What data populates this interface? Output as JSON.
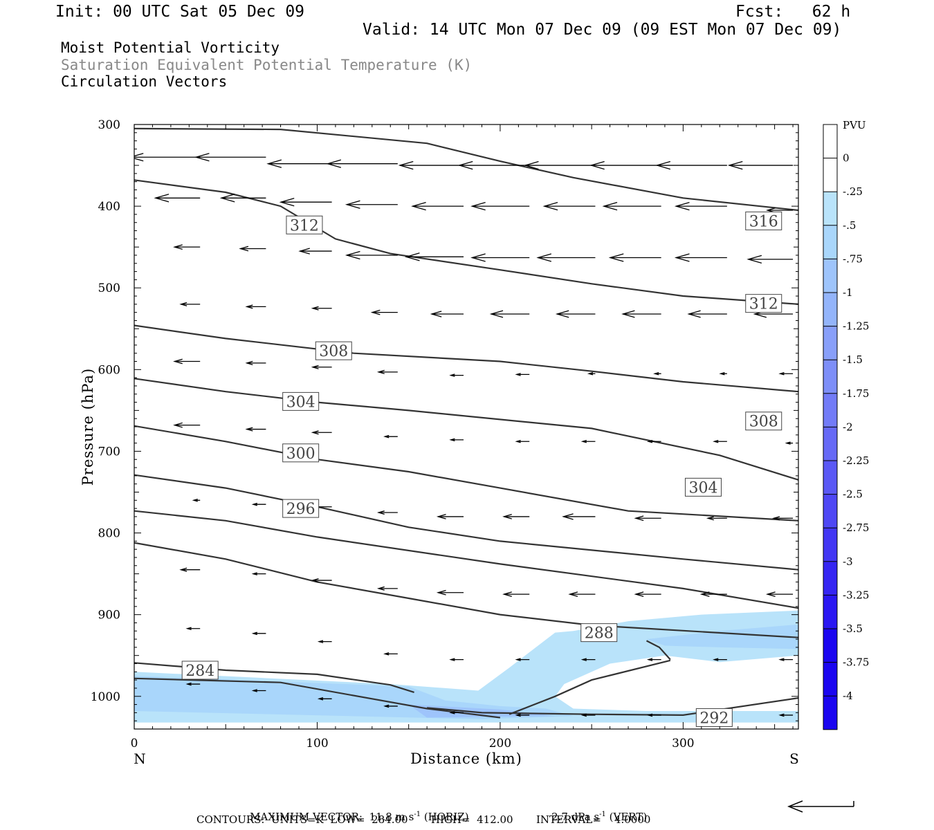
{
  "header": {
    "init": "Init: 00 UTC Sat 05 Dec 09",
    "fcst": "Fcst:   62 h",
    "valid": "Valid: 14 UTC Mon 07 Dec 09 (09 EST Mon 07 Dec 09)"
  },
  "titles": {
    "line1": "Moist Potential Vorticity",
    "line2": "Saturation Equivalent Potential Temperature (K)",
    "line3": "Circulation Vectors"
  },
  "colors": {
    "contour": "#333333",
    "label_text": "#444444",
    "subtitle_gray": "#888888",
    "pv_shades": [
      "#ffffff",
      "#ffffff",
      "#b9e3fa",
      "#a9d6fb",
      "#9ec4fb",
      "#93b4fa",
      "#889ff9",
      "#7d8ef8",
      "#727bf7",
      "#6669f6",
      "#5a58f5",
      "#4e47f4",
      "#4236f3",
      "#3525f2",
      "#2a17f2",
      "#1a05f0"
    ]
  },
  "chart_data": {
    "type": "contour",
    "xlabel": "Distance (km)",
    "ylabel": "Pressure (hPa)",
    "xlim": [
      0,
      363
    ],
    "ylim": [
      1040,
      300
    ],
    "x_ticks": [
      "0",
      "100",
      "200",
      "300"
    ],
    "y_ticks": [
      "300",
      "400",
      "500",
      "600",
      "700",
      "800",
      "900",
      "1000"
    ],
    "x_end_labels": {
      "left": "N",
      "right": "S"
    },
    "contour_labels": [
      {
        "value": "316",
        "x": 344,
        "p": 418
      },
      {
        "value": "312",
        "x": 93,
        "p": 423
      },
      {
        "value": "312",
        "x": 344,
        "p": 519
      },
      {
        "value": "308",
        "x": 109,
        "p": 577
      },
      {
        "value": "308",
        "x": 344,
        "p": 663
      },
      {
        "value": "304",
        "x": 91,
        "p": 639
      },
      {
        "value": "304",
        "x": 311,
        "p": 744
      },
      {
        "value": "300",
        "x": 91,
        "p": 702
      },
      {
        "value": "296",
        "x": 91,
        "p": 770
      },
      {
        "value": "288",
        "x": 254,
        "p": 922
      },
      {
        "value": "284",
        "x": 36,
        "p": 968
      },
      {
        "value": "292",
        "x": 317,
        "p": 1026
      }
    ],
    "colorbar": {
      "unit": "PVU",
      "levels": [
        "0",
        "-.25",
        "-.5",
        "-.75",
        "-1",
        "-1.25",
        "-1.5",
        "-1.75",
        "-2",
        "-2.25",
        "-2.5",
        "-2.75",
        "-3",
        "-3.25",
        "-3.5",
        "-3.75",
        "-4"
      ]
    },
    "contours": [
      [
        [
          0,
          305
        ],
        [
          80,
          306
        ],
        [
          160,
          323
        ],
        [
          200,
          345
        ],
        [
          240,
          365
        ],
        [
          300,
          390
        ],
        [
          363,
          405
        ]
      ],
      [
        [
          0,
          368
        ],
        [
          50,
          383
        ],
        [
          80,
          400
        ],
        [
          110,
          440
        ],
        [
          140,
          458
        ],
        [
          200,
          478
        ],
        [
          250,
          495
        ],
        [
          300,
          510
        ],
        [
          363,
          520
        ]
      ],
      [
        [
          0,
          546
        ],
        [
          50,
          562
        ],
        [
          120,
          580
        ],
        [
          200,
          590
        ],
        [
          250,
          602
        ],
        [
          300,
          615
        ],
        [
          363,
          627
        ]
      ],
      [
        [
          0,
          611
        ],
        [
          50,
          627
        ],
        [
          100,
          640
        ],
        [
          150,
          650
        ],
        [
          250,
          672
        ],
        [
          320,
          705
        ],
        [
          363,
          735
        ]
      ],
      [
        [
          0,
          669
        ],
        [
          50,
          688
        ],
        [
          100,
          710
        ],
        [
          150,
          725
        ],
        [
          200,
          745
        ],
        [
          270,
          773
        ],
        [
          363,
          785
        ]
      ],
      [
        [
          0,
          729
        ],
        [
          50,
          745
        ],
        [
          100,
          768
        ],
        [
          150,
          793
        ],
        [
          200,
          810
        ],
        [
          300,
          832
        ],
        [
          363,
          845
        ]
      ],
      [
        [
          0,
          773
        ],
        [
          50,
          785
        ],
        [
          100,
          805
        ],
        [
          200,
          838
        ],
        [
          300,
          868
        ],
        [
          363,
          892
        ]
      ],
      [
        [
          0,
          812
        ],
        [
          50,
          832
        ],
        [
          100,
          860
        ],
        [
          150,
          880
        ],
        [
          200,
          900
        ],
        [
          250,
          913
        ],
        [
          363,
          928
        ]
      ],
      [
        [
          0,
          959
        ],
        [
          50,
          968
        ],
        [
          100,
          973
        ],
        [
          140,
          986
        ],
        [
          153,
          995
        ]
      ],
      [
        [
          0,
          978
        ],
        [
          80,
          983
        ],
        [
          160,
          1015
        ],
        [
          200,
          1026
        ]
      ],
      [
        [
          205,
          1022
        ],
        [
          230,
          1000
        ],
        [
          250,
          980
        ],
        [
          293,
          956
        ]
      ],
      [
        [
          280,
          932
        ],
        [
          287,
          940
        ],
        [
          293,
          955
        ]
      ],
      [
        [
          160,
          1014
        ],
        [
          190,
          1020
        ],
        [
          250,
          1022
        ],
        [
          300,
          1023
        ],
        [
          363,
          1002
        ]
      ]
    ],
    "shading": [
      {
        "level": "-.25",
        "polygon": [
          [
            0,
            970
          ],
          [
            140,
            985
          ],
          [
            170,
            990
          ],
          [
            188,
            993
          ],
          [
            205,
            965
          ],
          [
            230,
            922
          ],
          [
            240,
            920
          ],
          [
            270,
            908
          ],
          [
            310,
            900
          ],
          [
            363,
            895
          ],
          [
            363,
            950
          ],
          [
            320,
            958
          ],
          [
            290,
            950
          ],
          [
            260,
            960
          ],
          [
            235,
            985
          ],
          [
            230,
            1000
          ],
          [
            240,
            1015
          ],
          [
            280,
            1018
          ],
          [
            363,
            1018
          ],
          [
            363,
            1032
          ],
          [
            0,
            1032
          ]
        ]
      },
      {
        "level": "-.5",
        "polygon": [
          [
            0,
            975
          ],
          [
            150,
            988
          ],
          [
            170,
            1005
          ],
          [
            200,
            1012
          ],
          [
            225,
            1015
          ],
          [
            240,
            1024
          ],
          [
            190,
            1028
          ],
          [
            0,
            1018
          ]
        ]
      },
      {
        "level": "-.5",
        "polygon": [
          [
            280,
            930
          ],
          [
            320,
            920
          ],
          [
            363,
            912
          ],
          [
            363,
            942
          ],
          [
            320,
            940
          ],
          [
            290,
            938
          ]
        ]
      },
      {
        "level": "-.75",
        "polygon": [
          [
            150,
            1010
          ],
          [
            200,
            1016
          ],
          [
            230,
            1024
          ],
          [
            160,
            1026
          ]
        ]
      }
    ],
    "vectors": [
      {
        "x": 0,
        "p": 330,
        "u": -12,
        "w": 0
      },
      {
        "x": 36,
        "p": 340,
        "u": -11,
        "w": 0
      },
      {
        "x": 72,
        "p": 340,
        "u": -11,
        "w": 0
      },
      {
        "x": 108,
        "p": 348,
        "u": -10,
        "w": 0
      },
      {
        "x": 144,
        "p": 348,
        "u": -11,
        "w": 0
      },
      {
        "x": 180,
        "p": 350,
        "u": -10,
        "w": 0
      },
      {
        "x": 216,
        "p": 350,
        "u": -11,
        "w": 0
      },
      {
        "x": 252,
        "p": 350,
        "u": -11,
        "w": 0
      },
      {
        "x": 288,
        "p": 350,
        "u": -11,
        "w": 0
      },
      {
        "x": 324,
        "p": 350,
        "u": -11,
        "w": 0
      },
      {
        "x": 360,
        "p": 350,
        "u": -10,
        "w": 0
      },
      {
        "x": 36,
        "p": 390,
        "u": -7,
        "w": 0
      },
      {
        "x": 72,
        "p": 390,
        "u": -7,
        "w": 0
      },
      {
        "x": 108,
        "p": 395,
        "u": -8,
        "w": 0
      },
      {
        "x": 144,
        "p": 398,
        "u": -8,
        "w": 0
      },
      {
        "x": 180,
        "p": 400,
        "u": -8,
        "w": 0
      },
      {
        "x": 216,
        "p": 400,
        "u": -9,
        "w": 0
      },
      {
        "x": 252,
        "p": 400,
        "u": -8,
        "w": 0
      },
      {
        "x": 288,
        "p": 400,
        "u": -9,
        "w": 0
      },
      {
        "x": 324,
        "p": 400,
        "u": -8,
        "w": 0
      },
      {
        "x": 360,
        "p": 405,
        "u": -4,
        "w": 0
      },
      {
        "x": 36,
        "p": 450,
        "u": -4,
        "w": 0
      },
      {
        "x": 72,
        "p": 452,
        "u": -4,
        "w": 0
      },
      {
        "x": 108,
        "p": 455,
        "u": -5,
        "w": 0
      },
      {
        "x": 144,
        "p": 460,
        "u": -8,
        "w": 0
      },
      {
        "x": 180,
        "p": 462,
        "u": -9,
        "w": 0
      },
      {
        "x": 216,
        "p": 463,
        "u": -9,
        "w": 0
      },
      {
        "x": 252,
        "p": 463,
        "u": -9,
        "w": 0
      },
      {
        "x": 288,
        "p": 463,
        "u": -8,
        "w": 0
      },
      {
        "x": 324,
        "p": 463,
        "u": -8,
        "w": 0
      },
      {
        "x": 360,
        "p": 465,
        "u": -7,
        "w": 0
      },
      {
        "x": 36,
        "p": 520,
        "u": -3,
        "w": 0
      },
      {
        "x": 72,
        "p": 523,
        "u": -3,
        "w": 0
      },
      {
        "x": 108,
        "p": 525,
        "u": -3,
        "w": 0
      },
      {
        "x": 144,
        "p": 530,
        "u": -4,
        "w": 0
      },
      {
        "x": 180,
        "p": 532,
        "u": -5,
        "w": 0
      },
      {
        "x": 216,
        "p": 532,
        "u": -6,
        "w": 0
      },
      {
        "x": 252,
        "p": 532,
        "u": -6,
        "w": 0
      },
      {
        "x": 288,
        "p": 532,
        "u": -6,
        "w": 0
      },
      {
        "x": 324,
        "p": 532,
        "u": -6,
        "w": 0
      },
      {
        "x": 360,
        "p": 532,
        "u": -6,
        "w": 0
      },
      {
        "x": 36,
        "p": 590,
        "u": -4,
        "w": 0
      },
      {
        "x": 72,
        "p": 592,
        "u": -3,
        "w": 0
      },
      {
        "x": 108,
        "p": 597,
        "u": -3,
        "w": 0
      },
      {
        "x": 144,
        "p": 603,
        "u": -3,
        "w": 0
      },
      {
        "x": 180,
        "p": 607,
        "u": -2,
        "w": 0
      },
      {
        "x": 216,
        "p": 606,
        "u": -2,
        "w": 0
      },
      {
        "x": 252,
        "p": 605,
        "u": -1,
        "w": 0
      },
      {
        "x": 288,
        "p": 605,
        "u": -1,
        "w": 0
      },
      {
        "x": 324,
        "p": 605,
        "u": -1,
        "w": 0
      },
      {
        "x": 360,
        "p": 605,
        "u": -2,
        "w": 0
      },
      {
        "x": 36,
        "p": 668,
        "u": -4,
        "w": 0
      },
      {
        "x": 72,
        "p": 673,
        "u": -3,
        "w": 0
      },
      {
        "x": 108,
        "p": 677,
        "u": -3,
        "w": 0
      },
      {
        "x": 144,
        "p": 682,
        "u": -2,
        "w": 0
      },
      {
        "x": 180,
        "p": 686,
        "u": -2,
        "w": 0
      },
      {
        "x": 216,
        "p": 688,
        "u": -2,
        "w": 0
      },
      {
        "x": 252,
        "p": 688,
        "u": -2,
        "w": 0
      },
      {
        "x": 288,
        "p": 688,
        "u": -2,
        "w": 0
      },
      {
        "x": 324,
        "p": 688,
        "u": -2,
        "w": 0
      },
      {
        "x": 360,
        "p": 690,
        "u": -1,
        "w": 0
      },
      {
        "x": 36,
        "p": 760,
        "u": -1,
        "w": 0
      },
      {
        "x": 72,
        "p": 765,
        "u": -2,
        "w": 0
      },
      {
        "x": 108,
        "p": 768,
        "u": -3,
        "w": 0
      },
      {
        "x": 144,
        "p": 775,
        "u": -3,
        "w": 0
      },
      {
        "x": 180,
        "p": 780,
        "u": -4,
        "w": 0
      },
      {
        "x": 216,
        "p": 780,
        "u": -4,
        "w": 0
      },
      {
        "x": 252,
        "p": 780,
        "u": -5,
        "w": 0
      },
      {
        "x": 288,
        "p": 782,
        "u": -4,
        "w": 0
      },
      {
        "x": 324,
        "p": 782,
        "u": -3,
        "w": 0
      },
      {
        "x": 360,
        "p": 782,
        "u": -3,
        "w": 0
      },
      {
        "x": 36,
        "p": 845,
        "u": -3,
        "w": 0
      },
      {
        "x": 72,
        "p": 850,
        "u": -2,
        "w": 0
      },
      {
        "x": 108,
        "p": 858,
        "u": -3,
        "w": 0
      },
      {
        "x": 144,
        "p": 868,
        "u": -3,
        "w": 0
      },
      {
        "x": 180,
        "p": 873,
        "u": -4,
        "w": 0
      },
      {
        "x": 216,
        "p": 875,
        "u": -4,
        "w": 0
      },
      {
        "x": 252,
        "p": 875,
        "u": -4,
        "w": 0
      },
      {
        "x": 288,
        "p": 875,
        "u": -4,
        "w": 0
      },
      {
        "x": 324,
        "p": 875,
        "u": -4,
        "w": 0
      },
      {
        "x": 360,
        "p": 875,
        "u": -4,
        "w": 0
      },
      {
        "x": 36,
        "p": 917,
        "u": -2,
        "w": 0
      },
      {
        "x": 72,
        "p": 923,
        "u": -2,
        "w": 0
      },
      {
        "x": 108,
        "p": 933,
        "u": -2,
        "w": 0
      },
      {
        "x": 144,
        "p": 948,
        "u": -2,
        "w": 0
      },
      {
        "x": 180,
        "p": 955,
        "u": -2,
        "w": 0
      },
      {
        "x": 216,
        "p": 955,
        "u": -2,
        "w": 0
      },
      {
        "x": 252,
        "p": 955,
        "u": -2,
        "w": 0
      },
      {
        "x": 288,
        "p": 955,
        "u": -2,
        "w": 0
      },
      {
        "x": 324,
        "p": 955,
        "u": -2,
        "w": 0
      },
      {
        "x": 360,
        "p": 955,
        "u": -2,
        "w": 0
      },
      {
        "x": 36,
        "p": 985,
        "u": -2,
        "w": 0
      },
      {
        "x": 72,
        "p": 993,
        "u": -2,
        "w": 0
      },
      {
        "x": 108,
        "p": 1003,
        "u": -2,
        "w": 0
      },
      {
        "x": 144,
        "p": 1012,
        "u": -2,
        "w": 0
      },
      {
        "x": 180,
        "p": 1020,
        "u": -2,
        "w": 0
      },
      {
        "x": 216,
        "p": 1023,
        "u": -2,
        "w": 0
      },
      {
        "x": 252,
        "p": 1023,
        "u": -2,
        "w": 0
      },
      {
        "x": 288,
        "p": 1023,
        "u": -2,
        "w": 0
      },
      {
        "x": 324,
        "p": 1023,
        "u": -2,
        "w": 0
      },
      {
        "x": 360,
        "p": 1023,
        "u": -2,
        "w": 0
      }
    ]
  },
  "footer": {
    "max_vector": "MAXIMUM VECTOR:  11.8 m s",
    "horiz": " (HORIZ)",
    "vert_value": "2.7 dPa s",
    "vert": " (VERT)",
    "exp": "-1",
    "contours": "CONTOURS:  UNITS=K  LOW=  284.00       HIGH=  412.00       INTERVAL=    4.0000"
  }
}
